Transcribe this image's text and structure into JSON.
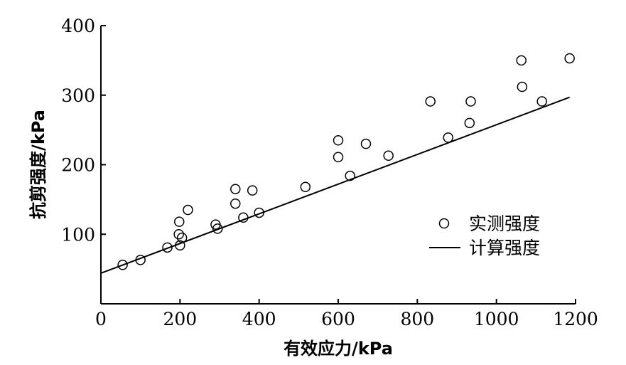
{
  "chart_data": {
    "type": "scatter",
    "xlabel": "有效应力/kPa",
    "ylabel": "抗剪强度/kPa",
    "xlim": [
      0,
      1200
    ],
    "ylim": [
      0,
      400
    ],
    "x_ticks": [
      0,
      200,
      400,
      600,
      800,
      1000,
      1200
    ],
    "y_ticks": [
      100,
      200,
      300,
      400
    ],
    "x_tick_labels": [
      "0",
      "200",
      "400",
      "600",
      "800",
      "1000",
      "1200"
    ],
    "y_tick_labels": [
      "100",
      "200",
      "300",
      "400"
    ],
    "grid": false,
    "legend_position": "right",
    "series": [
      {
        "name": "实测强度",
        "kind": "scatter",
        "marker": "open-circle",
        "points": [
          {
            "x": 55,
            "y": 56
          },
          {
            "x": 100,
            "y": 63
          },
          {
            "x": 168,
            "y": 81
          },
          {
            "x": 197,
            "y": 100
          },
          {
            "x": 200,
            "y": 84
          },
          {
            "x": 205,
            "y": 95
          },
          {
            "x": 198,
            "y": 118
          },
          {
            "x": 220,
            "y": 135
          },
          {
            "x": 290,
            "y": 114
          },
          {
            "x": 295,
            "y": 108
          },
          {
            "x": 340,
            "y": 144
          },
          {
            "x": 340,
            "y": 165
          },
          {
            "x": 360,
            "y": 124
          },
          {
            "x": 383,
            "y": 163
          },
          {
            "x": 400,
            "y": 131
          },
          {
            "x": 517,
            "y": 168
          },
          {
            "x": 600,
            "y": 211
          },
          {
            "x": 600,
            "y": 235
          },
          {
            "x": 630,
            "y": 184
          },
          {
            "x": 670,
            "y": 230
          },
          {
            "x": 727,
            "y": 213
          },
          {
            "x": 833,
            "y": 291
          },
          {
            "x": 878,
            "y": 239
          },
          {
            "x": 932,
            "y": 260
          },
          {
            "x": 935,
            "y": 291
          },
          {
            "x": 1063,
            "y": 350
          },
          {
            "x": 1065,
            "y": 312
          },
          {
            "x": 1115,
            "y": 291
          },
          {
            "x": 1185,
            "y": 353
          }
        ]
      },
      {
        "name": "计算强度",
        "kind": "line",
        "points": [
          {
            "x": 0,
            "y": 44
          },
          {
            "x": 1185,
            "y": 297
          }
        ]
      }
    ]
  }
}
